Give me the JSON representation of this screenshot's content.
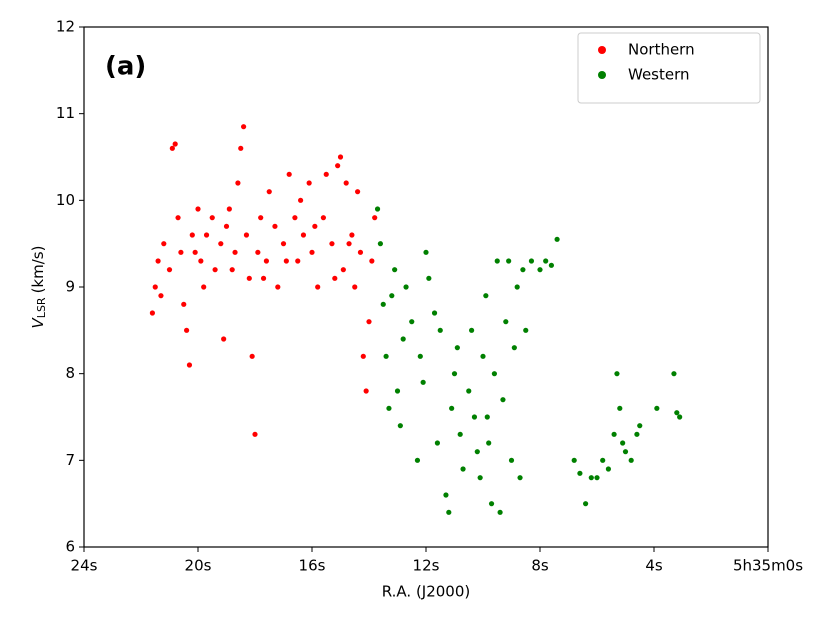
{
  "chart_data": {
    "type": "scatter",
    "annotation": "(a)",
    "xlabel": "R.A. (J2000)",
    "ylabel": {
      "main": "V",
      "subscript": "LSR",
      "unit": "(km/s)"
    },
    "xlim": [
      24,
      0
    ],
    "ylim": [
      6,
      12
    ],
    "xticks": [
      {
        "value": 24,
        "label": "24s"
      },
      {
        "value": 20,
        "label": "20s"
      },
      {
        "value": 16,
        "label": "16s"
      },
      {
        "value": 12,
        "label": "12s"
      },
      {
        "value": 8,
        "label": "8s"
      },
      {
        "value": 4,
        "label": "4s"
      },
      {
        "value": 0,
        "label": "5h35m0s"
      }
    ],
    "yticks": [
      6,
      7,
      8,
      9,
      10,
      11,
      12
    ],
    "grid": false,
    "legend": "upper right",
    "series": [
      {
        "name": "Northern",
        "color": "#ff0000",
        "x": [
          21.6,
          21.5,
          21.4,
          21.2,
          21.0,
          20.9,
          20.8,
          20.7,
          20.6,
          20.5,
          20.4,
          20.3,
          20.2,
          20.0,
          19.9,
          19.7,
          19.5,
          19.4,
          19.2,
          19.1,
          19.0,
          18.9,
          18.7,
          18.6,
          18.5,
          18.4,
          18.3,
          18.2,
          18.1,
          18.0,
          17.9,
          17.8,
          17.6,
          17.5,
          17.3,
          17.2,
          17.0,
          16.8,
          16.6,
          16.5,
          16.3,
          16.1,
          16.0,
          15.8,
          15.6,
          15.5,
          15.3,
          15.1,
          15.0,
          14.9,
          14.8,
          14.6,
          14.5,
          14.4,
          14.3,
          14.2,
          14.1,
          14.0,
          13.9,
          13.8,
          21.3,
          19.8,
          17.7,
          16.9,
          15.9,
          15.2,
          14.7,
          20.1,
          18.8,
          16.4
        ],
        "values": [
          8.7,
          9.0,
          9.3,
          9.5,
          9.2,
          10.6,
          10.65,
          9.8,
          9.4,
          8.8,
          8.5,
          8.1,
          9.6,
          9.9,
          9.3,
          9.6,
          9.8,
          9.2,
          9.5,
          8.4,
          9.7,
          9.9,
          9.4,
          10.2,
          10.6,
          10.85,
          9.6,
          9.1,
          8.2,
          7.3,
          9.4,
          9.8,
          9.3,
          10.1,
          9.7,
          9.0,
          9.5,
          10.3,
          9.8,
          9.3,
          9.6,
          10.2,
          9.4,
          9.0,
          9.8,
          10.3,
          9.5,
          10.4,
          10.5,
          9.2,
          10.2,
          9.6,
          9.0,
          10.1,
          9.4,
          8.2,
          7.8,
          8.6,
          9.3,
          9.8,
          8.9,
          9.0,
          9.1,
          9.3,
          9.7,
          9.1,
          9.5,
          9.4,
          9.2,
          10.0
        ]
      },
      {
        "name": "Western",
        "color": "#008000",
        "x": [
          13.7,
          13.6,
          13.5,
          13.4,
          13.3,
          13.2,
          13.1,
          13.0,
          12.9,
          12.8,
          12.7,
          12.5,
          12.3,
          12.2,
          12.0,
          11.9,
          11.7,
          11.5,
          11.3,
          11.2,
          11.1,
          11.0,
          10.8,
          10.7,
          10.5,
          10.4,
          10.3,
          10.1,
          10.0,
          9.9,
          9.8,
          9.7,
          9.6,
          9.5,
          9.4,
          9.3,
          9.2,
          9.1,
          9.0,
          8.9,
          8.8,
          8.7,
          8.6,
          8.5,
          8.3,
          8.0,
          7.8,
          7.6,
          7.4,
          11.6,
          10.9,
          10.2,
          9.85,
          12.1,
          6.8,
          6.6,
          6.4,
          6.2,
          6.0,
          5.8,
          5.6,
          5.4,
          5.3,
          5.2,
          5.1,
          5.0,
          4.8,
          4.6,
          4.5,
          3.9,
          3.3,
          3.2,
          3.1
        ],
        "values": [
          9.9,
          9.5,
          8.8,
          8.2,
          7.6,
          8.9,
          9.2,
          7.8,
          7.4,
          8.4,
          9.0,
          8.6,
          7.0,
          8.2,
          9.4,
          9.1,
          8.7,
          8.5,
          6.6,
          6.4,
          7.6,
          8.0,
          7.3,
          6.9,
          7.8,
          8.5,
          7.5,
          6.8,
          8.2,
          8.9,
          7.2,
          6.5,
          8.0,
          9.3,
          6.4,
          7.7,
          8.6,
          9.3,
          7.0,
          8.3,
          9.0,
          6.8,
          9.2,
          8.5,
          9.3,
          9.2,
          9.3,
          9.25,
          9.55,
          7.2,
          8.3,
          7.1,
          7.5,
          7.9,
          7.0,
          6.85,
          6.5,
          6.8,
          6.8,
          7.0,
          6.9,
          7.3,
          8.0,
          7.6,
          7.2,
          7.1,
          7.0,
          7.3,
          7.4,
          7.6,
          8.0,
          7.55,
          7.5
        ]
      }
    ]
  }
}
